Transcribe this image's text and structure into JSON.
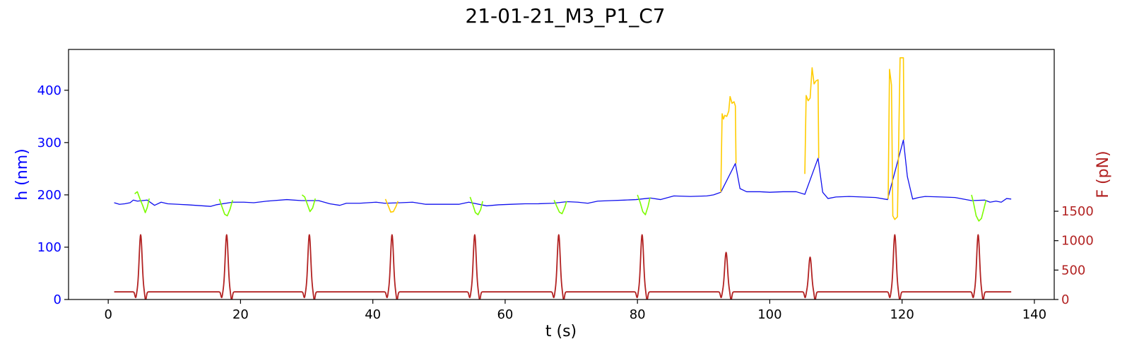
{
  "chart_data": {
    "type": "line",
    "title": "21-01-21_M3_P1_C7",
    "xlabel": "t (s)",
    "ylabel_left": "h (nm)",
    "ylabel_right": "F (pN)",
    "xlim": [
      -6,
      143
    ],
    "ylim_left": [
      0,
      478
    ],
    "ylim_right": [
      0,
      4250
    ],
    "x_ticks": [
      0,
      20,
      40,
      60,
      80,
      100,
      120,
      140
    ],
    "y_left_ticks": [
      0,
      100,
      200,
      300,
      400
    ],
    "y_right_ticks": [
      0,
      500,
      1000,
      1500
    ],
    "grid": false,
    "colors": {
      "h_base": "#1010ee",
      "h_green": "#7cfc00",
      "h_yellow": "#ffcc00",
      "force": "#b22222",
      "left_axis": "#0000ff",
      "right_axis": "#b22222"
    },
    "series": [
      {
        "axis": "left",
        "color": "h_base",
        "points": [
          [
            0.9,
            185
          ],
          [
            1.7,
            182
          ],
          [
            2.5,
            183
          ],
          [
            3.3,
            185
          ],
          [
            3.8,
            190
          ],
          [
            4.4,
            188
          ],
          [
            5.9,
            190
          ],
          [
            7.0,
            180
          ],
          [
            8.0,
            186
          ],
          [
            9.0,
            183
          ],
          [
            12,
            181
          ],
          [
            15.5,
            178
          ],
          [
            16.3,
            181
          ],
          [
            18.8,
            186
          ],
          [
            20.5,
            186
          ],
          [
            22,
            185
          ],
          [
            24,
            188
          ],
          [
            27,
            191
          ],
          [
            29.2,
            189
          ],
          [
            31.8,
            189
          ],
          [
            33.5,
            183
          ],
          [
            35,
            180
          ],
          [
            36,
            184
          ],
          [
            38,
            184
          ],
          [
            40.5,
            186
          ],
          [
            41.8,
            184
          ],
          [
            44.2,
            185
          ],
          [
            46,
            186
          ],
          [
            48,
            182
          ],
          [
            50,
            182
          ],
          [
            53,
            182
          ],
          [
            54.5,
            186
          ],
          [
            57.2,
            179
          ],
          [
            59,
            181
          ],
          [
            61,
            182
          ],
          [
            63,
            183
          ],
          [
            65,
            183
          ],
          [
            67.2,
            184
          ],
          [
            69.4,
            187
          ],
          [
            71,
            186
          ],
          [
            72.5,
            184
          ],
          [
            74,
            188
          ],
          [
            76,
            189
          ],
          [
            78,
            190
          ],
          [
            79.8,
            191
          ],
          [
            82.0,
            194
          ],
          [
            83.5,
            191
          ],
          [
            85.5,
            198
          ],
          [
            88,
            197
          ],
          [
            90.5,
            198
          ],
          [
            91.5,
            200
          ],
          [
            92.6,
            205
          ],
          [
            94.8,
            260
          ],
          [
            95.5,
            212
          ],
          [
            96.5,
            206
          ],
          [
            98.5,
            206
          ],
          [
            100,
            205
          ],
          [
            102,
            206
          ],
          [
            104,
            206
          ],
          [
            105.3,
            201
          ],
          [
            107.3,
            270
          ],
          [
            108,
            205
          ],
          [
            108.8,
            193
          ],
          [
            110,
            196
          ],
          [
            112,
            197
          ],
          [
            114,
            196
          ],
          [
            116,
            195
          ],
          [
            117.8,
            191
          ],
          [
            120.2,
            305
          ],
          [
            120.8,
            235
          ],
          [
            121.6,
            192
          ],
          [
            122.5,
            195
          ],
          [
            123.5,
            197
          ],
          [
            126,
            196
          ],
          [
            128,
            195
          ],
          [
            130.5,
            189
          ],
          [
            132.5,
            190
          ],
          [
            133.3,
            186
          ],
          [
            134.2,
            188
          ],
          [
            135,
            186
          ],
          [
            135.8,
            193
          ],
          [
            136.5,
            192
          ]
        ]
      },
      {
        "axis": "left",
        "color": "h_green",
        "points": [
          [
            4.0,
            202
          ],
          [
            4.4,
            206
          ],
          [
            4.8,
            192
          ],
          [
            5.2,
            180
          ],
          [
            5.6,
            166
          ],
          [
            5.9,
            176
          ],
          [
            6.2,
            193
          ]
        ]
      },
      {
        "axis": "left",
        "color": "h_green",
        "points": [
          [
            16.8,
            192
          ],
          [
            17.2,
            177
          ],
          [
            17.6,
            163
          ],
          [
            18.0,
            160
          ],
          [
            18.4,
            172
          ],
          [
            18.8,
            190
          ]
        ]
      },
      {
        "axis": "left",
        "color": "h_green",
        "points": [
          [
            29.3,
            200
          ],
          [
            29.7,
            196
          ],
          [
            30.1,
            182
          ],
          [
            30.5,
            168
          ],
          [
            30.9,
            175
          ],
          [
            31.3,
            193
          ]
        ]
      },
      {
        "axis": "left",
        "color": "h_yellow",
        "points": [
          [
            41.9,
            192
          ],
          [
            42.3,
            180
          ],
          [
            42.7,
            167
          ],
          [
            43.1,
            168
          ],
          [
            43.5,
            178
          ],
          [
            43.8,
            188
          ]
        ]
      },
      {
        "axis": "left",
        "color": "h_green",
        "points": [
          [
            54.7,
            196
          ],
          [
            55.1,
            182
          ],
          [
            55.5,
            166
          ],
          [
            55.9,
            162
          ],
          [
            56.3,
            172
          ],
          [
            56.6,
            188
          ]
        ]
      },
      {
        "axis": "left",
        "color": "h_green",
        "points": [
          [
            67.4,
            190
          ],
          [
            67.8,
            178
          ],
          [
            68.2,
            167
          ],
          [
            68.6,
            164
          ],
          [
            69.0,
            176
          ],
          [
            69.3,
            188
          ]
        ]
      },
      {
        "axis": "left",
        "color": "h_green",
        "points": [
          [
            80.0,
            200
          ],
          [
            80.4,
            186
          ],
          [
            80.8,
            168
          ],
          [
            81.2,
            162
          ],
          [
            81.6,
            178
          ],
          [
            81.9,
            195
          ]
        ]
      },
      {
        "axis": "left",
        "color": "h_yellow",
        "points": [
          [
            92.6,
            205
          ],
          [
            92.8,
            355
          ],
          [
            93.0,
            345
          ],
          [
            93.2,
            352
          ],
          [
            93.5,
            350
          ],
          [
            93.8,
            360
          ],
          [
            94.0,
            388
          ],
          [
            94.3,
            375
          ],
          [
            94.6,
            378
          ],
          [
            94.8,
            370
          ],
          [
            94.9,
            260
          ]
        ]
      },
      {
        "axis": "left",
        "color": "h_yellow",
        "points": [
          [
            105.3,
            240
          ],
          [
            105.5,
            390
          ],
          [
            105.8,
            380
          ],
          [
            106.1,
            385
          ],
          [
            106.4,
            443
          ],
          [
            106.7,
            412
          ],
          [
            107.0,
            418
          ],
          [
            107.3,
            420
          ],
          [
            107.4,
            270
          ]
        ]
      },
      {
        "axis": "left",
        "color": "h_yellow",
        "points": [
          [
            117.9,
            192
          ],
          [
            118.1,
            440
          ],
          [
            118.4,
            410
          ],
          [
            118.6,
            160
          ],
          [
            118.9,
            153
          ],
          [
            119.3,
            158
          ],
          [
            119.7,
            462
          ],
          [
            120.2,
            462
          ],
          [
            120.3,
            305
          ]
        ]
      },
      {
        "axis": "left",
        "color": "h_green",
        "points": [
          [
            130.5,
            200
          ],
          [
            130.8,
            185
          ],
          [
            131.2,
            160
          ],
          [
            131.6,
            150
          ],
          [
            132.0,
            155
          ],
          [
            132.4,
            175
          ],
          [
            132.7,
            190
          ]
        ]
      },
      {
        "axis": "right",
        "color": "force",
        "baseline": 130,
        "pulses": [
          {
            "center": 4.9,
            "peak": 1100
          },
          {
            "center": 17.9,
            "peak": 1100
          },
          {
            "center": 30.4,
            "peak": 1100
          },
          {
            "center": 42.9,
            "peak": 1100
          },
          {
            "center": 55.4,
            "peak": 1100
          },
          {
            "center": 68.1,
            "peak": 1100
          },
          {
            "center": 80.7,
            "peak": 1100
          },
          {
            "center": 93.4,
            "peak": 800
          },
          {
            "center": 106.1,
            "peak": 720
          },
          {
            "center": 118.9,
            "peak": 1100
          },
          {
            "center": 131.5,
            "peak": 1100
          }
        ],
        "x_start": 0.9,
        "x_end": 136.5
      }
    ]
  }
}
